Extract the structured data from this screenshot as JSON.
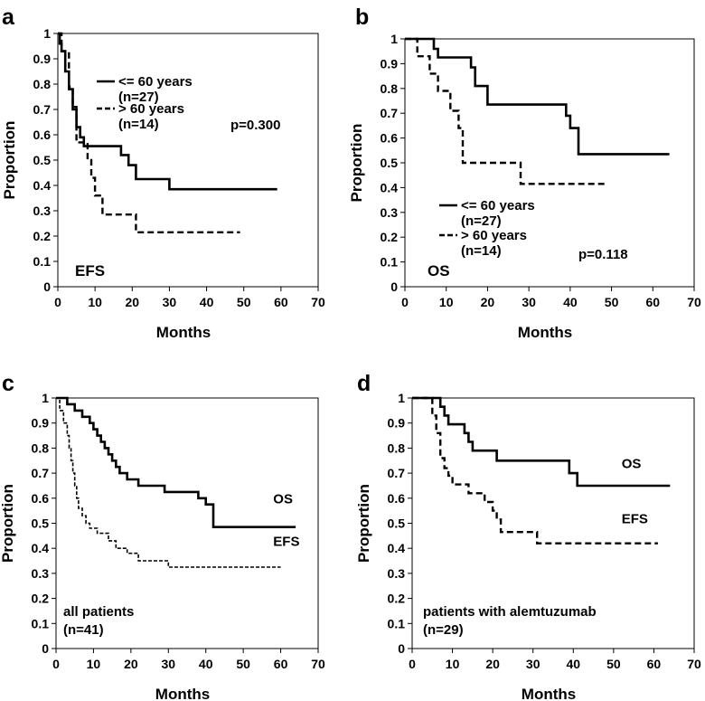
{
  "chart_data": [
    {
      "panel": "a",
      "type": "line",
      "title": "EFS",
      "xlabel": "Months",
      "ylabel": "Proportion",
      "xlim": [
        0,
        70
      ],
      "ylim": [
        0,
        1
      ],
      "xticks": [
        "0",
        "10",
        "20",
        "30",
        "40",
        "50",
        "60",
        "70"
      ],
      "yticks": [
        "0",
        "0.1",
        "0.2",
        "0.3",
        "0.4",
        "0.5",
        "0.6",
        "0.7",
        "0.8",
        "0.9",
        "1"
      ],
      "legend": [
        {
          "label": "<= 60 years",
          "n": "(n=27)",
          "style": "solid"
        },
        {
          "label": "> 60 years",
          "n": "(n=14)",
          "style": "dashed"
        }
      ],
      "pvalue": "p=0.300",
      "series": [
        {
          "name": "<= 60 years",
          "style": "solid",
          "points": [
            [
              0,
              1
            ],
            [
              0.5,
              1
            ],
            [
              0.5,
              0.96
            ],
            [
              1,
              0.96
            ],
            [
              1,
              0.93
            ],
            [
              2,
              0.93
            ],
            [
              2,
              0.85
            ],
            [
              3,
              0.85
            ],
            [
              3,
              0.78
            ],
            [
              4,
              0.78
            ],
            [
              4,
              0.7
            ],
            [
              5,
              0.7
            ],
            [
              5,
              0.63
            ],
            [
              6,
              0.63
            ],
            [
              6,
              0.59
            ],
            [
              7,
              0.59
            ],
            [
              7,
              0.555
            ],
            [
              17,
              0.555
            ],
            [
              17,
              0.52
            ],
            [
              19,
              0.52
            ],
            [
              19,
              0.48
            ],
            [
              21,
              0.48
            ],
            [
              21,
              0.425
            ],
            [
              30,
              0.425
            ],
            [
              30,
              0.385
            ],
            [
              59,
              0.385
            ]
          ]
        },
        {
          "name": "> 60 years",
          "style": "dashed",
          "points": [
            [
              0,
              1
            ],
            [
              1,
              1
            ],
            [
              1,
              0.93
            ],
            [
              3,
              0.93
            ],
            [
              3,
              0.79
            ],
            [
              4,
              0.79
            ],
            [
              4,
              0.71
            ],
            [
              5,
              0.71
            ],
            [
              5,
              0.57
            ],
            [
              8,
              0.57
            ],
            [
              8,
              0.5
            ],
            [
              9,
              0.5
            ],
            [
              9,
              0.43
            ],
            [
              10,
              0.43
            ],
            [
              10,
              0.36
            ],
            [
              12,
              0.36
            ],
            [
              12,
              0.285
            ],
            [
              21,
              0.285
            ],
            [
              21,
              0.215
            ],
            [
              49,
              0.215
            ]
          ]
        }
      ]
    },
    {
      "panel": "b",
      "type": "line",
      "title": "OS",
      "xlabel": "Months",
      "ylabel": "Proportion",
      "xlim": [
        0,
        70
      ],
      "ylim": [
        0,
        1
      ],
      "xticks": [
        "0",
        "10",
        "20",
        "30",
        "40",
        "50",
        "60",
        "70"
      ],
      "yticks": [
        "0",
        "0.1",
        "0.2",
        "0.3",
        "0.4",
        "0.5",
        "0.6",
        "0.7",
        "0.8",
        "0.9",
        "1"
      ],
      "legend": [
        {
          "label": "<= 60 years",
          "n": "(n=27)",
          "style": "solid"
        },
        {
          "label": "> 60 years",
          "n": "(n=14)",
          "style": "dashed"
        }
      ],
      "pvalue": "p=0.118",
      "series": [
        {
          "name": "<= 60 years",
          "style": "solid",
          "points": [
            [
              0,
              1
            ],
            [
              7,
              1
            ],
            [
              7,
              0.96
            ],
            [
              8,
              0.96
            ],
            [
              8,
              0.925
            ],
            [
              16,
              0.925
            ],
            [
              16,
              0.885
            ],
            [
              17,
              0.885
            ],
            [
              17,
              0.81
            ],
            [
              20,
              0.81
            ],
            [
              20,
              0.735
            ],
            [
              39,
              0.735
            ],
            [
              39,
              0.69
            ],
            [
              40,
              0.69
            ],
            [
              40,
              0.64
            ],
            [
              42,
              0.64
            ],
            [
              42,
              0.535
            ],
            [
              64,
              0.535
            ]
          ]
        },
        {
          "name": "> 60 years",
          "style": "dashed",
          "points": [
            [
              0,
              1
            ],
            [
              3,
              1
            ],
            [
              3,
              0.93
            ],
            [
              6,
              0.93
            ],
            [
              6,
              0.86
            ],
            [
              8,
              0.86
            ],
            [
              8,
              0.79
            ],
            [
              11,
              0.79
            ],
            [
              11,
              0.71
            ],
            [
              13,
              0.71
            ],
            [
              13,
              0.64
            ],
            [
              14,
              0.64
            ],
            [
              14,
              0.5
            ],
            [
              28,
              0.5
            ],
            [
              28,
              0.415
            ],
            [
              49,
              0.415
            ]
          ]
        }
      ]
    },
    {
      "panel": "c",
      "type": "line",
      "title": "",
      "annotation": [
        "all patients",
        "(n=41)"
      ],
      "xlabel": "Months",
      "ylabel": "Proportion",
      "xlim": [
        0,
        70
      ],
      "ylim": [
        0,
        1
      ],
      "xticks": [
        "0",
        "10",
        "20",
        "30",
        "40",
        "50",
        "60",
        "70"
      ],
      "yticks": [
        "0",
        "0.1",
        "0.2",
        "0.3",
        "0.4",
        "0.5",
        "0.6",
        "0.7",
        "0.8",
        "0.9",
        "1"
      ],
      "series": [
        {
          "name": "OS",
          "style": "solid",
          "label_at": [
            58,
            0.58
          ],
          "points": [
            [
              0,
              1
            ],
            [
              3,
              1
            ],
            [
              3,
              0.975
            ],
            [
              5,
              0.975
            ],
            [
              5,
              0.95
            ],
            [
              7,
              0.95
            ],
            [
              7,
              0.925
            ],
            [
              9,
              0.925
            ],
            [
              9,
              0.9
            ],
            [
              10,
              0.9
            ],
            [
              10,
              0.875
            ],
            [
              11,
              0.875
            ],
            [
              11,
              0.85
            ],
            [
              12,
              0.85
            ],
            [
              12,
              0.825
            ],
            [
              13,
              0.825
            ],
            [
              13,
              0.8
            ],
            [
              14,
              0.8
            ],
            [
              14,
              0.775
            ],
            [
              15,
              0.775
            ],
            [
              15,
              0.75
            ],
            [
              16,
              0.75
            ],
            [
              16,
              0.725
            ],
            [
              17,
              0.725
            ],
            [
              17,
              0.7
            ],
            [
              19,
              0.7
            ],
            [
              19,
              0.675
            ],
            [
              22,
              0.675
            ],
            [
              22,
              0.65
            ],
            [
              29,
              0.65
            ],
            [
              29,
              0.625
            ],
            [
              38,
              0.625
            ],
            [
              38,
              0.6
            ],
            [
              40,
              0.6
            ],
            [
              40,
              0.575
            ],
            [
              42,
              0.575
            ],
            [
              42,
              0.485
            ],
            [
              64,
              0.485
            ]
          ]
        },
        {
          "name": "EFS",
          "style": "dashed-fine",
          "label_at": [
            58,
            0.41
          ],
          "points": [
            [
              0,
              1
            ],
            [
              1,
              1
            ],
            [
              1,
              0.95
            ],
            [
              2,
              0.95
            ],
            [
              2,
              0.9
            ],
            [
              3,
              0.9
            ],
            [
              3,
              0.85
            ],
            [
              3.5,
              0.85
            ],
            [
              3.5,
              0.8
            ],
            [
              4,
              0.8
            ],
            [
              4,
              0.75
            ],
            [
              4.5,
              0.75
            ],
            [
              4.5,
              0.7
            ],
            [
              5,
              0.7
            ],
            [
              5,
              0.65
            ],
            [
              5.5,
              0.65
            ],
            [
              5.5,
              0.6
            ],
            [
              6,
              0.6
            ],
            [
              6,
              0.56
            ],
            [
              7,
              0.56
            ],
            [
              7,
              0.53
            ],
            [
              8,
              0.53
            ],
            [
              8,
              0.5
            ],
            [
              9,
              0.5
            ],
            [
              9,
              0.48
            ],
            [
              11,
              0.48
            ],
            [
              11,
              0.46
            ],
            [
              14,
              0.46
            ],
            [
              14,
              0.43
            ],
            [
              16,
              0.43
            ],
            [
              16,
              0.4
            ],
            [
              19,
              0.4
            ],
            [
              19,
              0.38
            ],
            [
              22,
              0.38
            ],
            [
              22,
              0.35
            ],
            [
              30,
              0.35
            ],
            [
              30,
              0.325
            ],
            [
              60,
              0.325
            ]
          ]
        }
      ]
    },
    {
      "panel": "d",
      "type": "line",
      "title": "",
      "annotation": [
        "patients with alemtuzumab",
        "(n=29)"
      ],
      "xlabel": "Months",
      "ylabel": "Proportion",
      "xlim": [
        0,
        70
      ],
      "ylim": [
        0,
        1
      ],
      "xticks": [
        "0",
        "10",
        "20",
        "30",
        "40",
        "50",
        "60",
        "70"
      ],
      "yticks": [
        "0",
        "0.1",
        "0.2",
        "0.3",
        "0.4",
        "0.5",
        "0.6",
        "0.7",
        "0.8",
        "0.9",
        "1"
      ],
      "series": [
        {
          "name": "OS",
          "style": "solid",
          "label_at": [
            52,
            0.72
          ],
          "points": [
            [
              0,
              1
            ],
            [
              7,
              1
            ],
            [
              7,
              0.965
            ],
            [
              8,
              0.965
            ],
            [
              8,
              0.93
            ],
            [
              9,
              0.93
            ],
            [
              9,
              0.895
            ],
            [
              13,
              0.895
            ],
            [
              13,
              0.86
            ],
            [
              14,
              0.86
            ],
            [
              14,
              0.825
            ],
            [
              15,
              0.825
            ],
            [
              15,
              0.79
            ],
            [
              21,
              0.79
            ],
            [
              21,
              0.75
            ],
            [
              39,
              0.75
            ],
            [
              39,
              0.7
            ],
            [
              41,
              0.7
            ],
            [
              41,
              0.65
            ],
            [
              64,
              0.65
            ]
          ]
        },
        {
          "name": "EFS",
          "style": "dashed",
          "label_at": [
            52,
            0.5
          ],
          "points": [
            [
              0,
              1
            ],
            [
              5,
              1
            ],
            [
              5,
              0.93
            ],
            [
              6,
              0.93
            ],
            [
              6,
              0.86
            ],
            [
              7,
              0.86
            ],
            [
              7,
              0.76
            ],
            [
              8,
              0.76
            ],
            [
              8,
              0.72
            ],
            [
              9,
              0.72
            ],
            [
              9,
              0.69
            ],
            [
              10,
              0.69
            ],
            [
              10,
              0.655
            ],
            [
              14,
              0.655
            ],
            [
              14,
              0.62
            ],
            [
              18,
              0.62
            ],
            [
              18,
              0.585
            ],
            [
              20,
              0.585
            ],
            [
              20,
              0.55
            ],
            [
              21,
              0.55
            ],
            [
              21,
              0.515
            ],
            [
              22,
              0.515
            ],
            [
              22,
              0.465
            ],
            [
              31,
              0.465
            ],
            [
              31,
              0.42
            ],
            [
              61,
              0.42
            ]
          ]
        }
      ]
    }
  ]
}
